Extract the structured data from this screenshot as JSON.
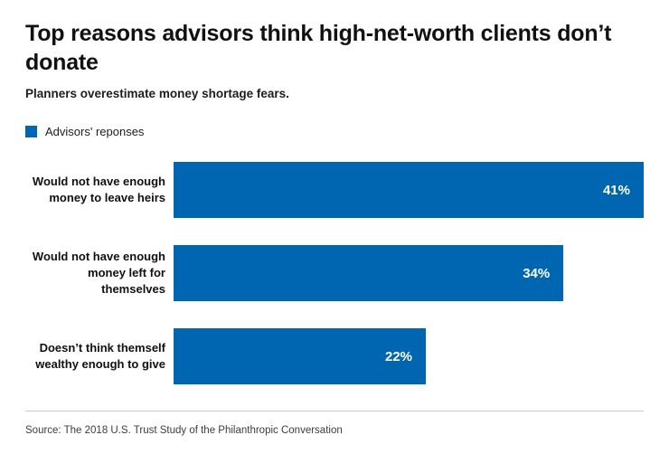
{
  "chart_data": {
    "type": "bar",
    "orientation": "horizontal",
    "title": "Top reasons advisors think high-net-worth clients don’t donate",
    "subtitle": "Planners overestimate money shortage fears.",
    "legend": [
      "Advisors' reponses"
    ],
    "categories": [
      "Would not have enough money to leave heirs",
      "Would not have enough money left for themselves",
      "Doesn’t think themself wealthy enough to give"
    ],
    "values": [
      41,
      34,
      22
    ],
    "value_labels": [
      "41%",
      "34%",
      "22%"
    ],
    "xlim": [
      0,
      41
    ],
    "bar_color": "#0066b2",
    "grid": false,
    "legend_position": "top-left",
    "source": "Source: The 2018 U.S. Trust Study of the Philanthropic Conversation"
  }
}
